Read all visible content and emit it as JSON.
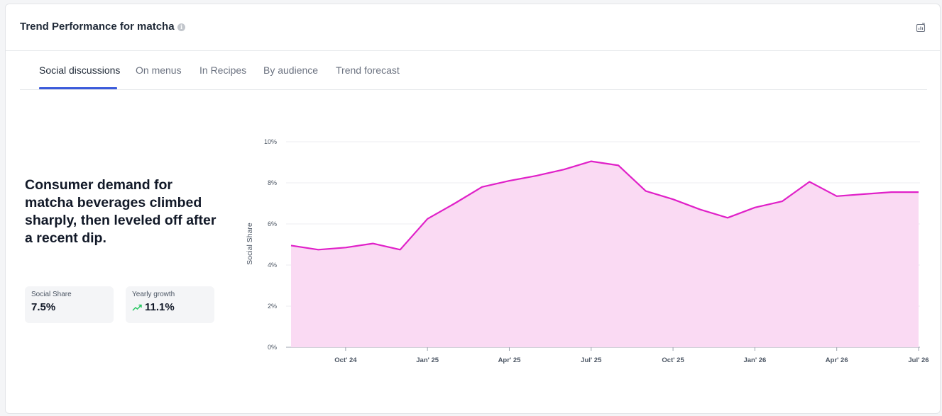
{
  "header": {
    "title": "Trend Performance for matcha",
    "info_icon": "info-icon",
    "export_icon": "export-chart-icon"
  },
  "tabs": [
    {
      "label": "Social discussions",
      "active": true
    },
    {
      "label": "On menus",
      "active": false
    },
    {
      "label": "In Recipes",
      "active": false
    },
    {
      "label": "By audience",
      "active": false
    },
    {
      "label": "Trend forecast",
      "active": false
    }
  ],
  "summary": {
    "headline": "Consumer demand for matcha beverages climbed sharply, then leveled off after a recent dip."
  },
  "stats": {
    "social_share": {
      "label": "Social Share",
      "value": "7.5%"
    },
    "yearly_growth": {
      "label": "Yearly growth",
      "value": "11.1%",
      "icon": "trend-up-icon"
    }
  },
  "colors": {
    "accent": "#3b5bdb",
    "line": "#e020c8",
    "area": "#fadaf3",
    "growth": "#22c55e"
  },
  "chart_data": {
    "type": "area",
    "xlabel": "",
    "ylabel": "Social Share",
    "ylim": [
      0,
      10
    ],
    "y_ticks": [
      "0%",
      "2%",
      "4%",
      "6%",
      "8%",
      "10%"
    ],
    "x_ticks": [
      "Oct' 24",
      "Jan' 25",
      "Apr' 25",
      "Jul' 25",
      "Oct' 25",
      "Jan' 26",
      "Apr' 26",
      "Jul' 26"
    ],
    "grid": true,
    "series": [
      {
        "values": [
          4.95,
          4.75,
          4.85,
          5.05,
          4.75,
          6.25,
          7.0,
          7.8,
          8.1,
          8.35,
          8.65,
          9.05,
          8.85,
          7.6,
          7.2,
          6.7,
          6.3,
          6.8,
          7.1,
          8.05,
          7.35,
          7.45,
          7.55,
          7.55
        ]
      }
    ]
  }
}
